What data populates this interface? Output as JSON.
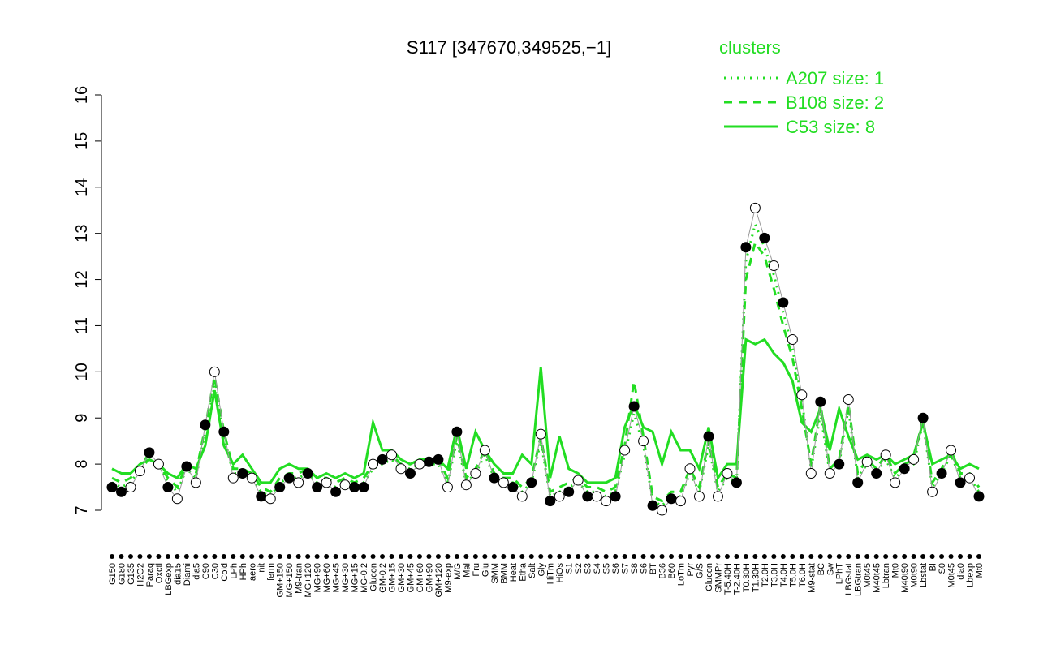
{
  "chart_data": {
    "type": "line",
    "title": "S117 [347670,349525,−1]",
    "ylim": [
      7,
      16
    ],
    "yticks": [
      7,
      8,
      9,
      10,
      11,
      12,
      13,
      14,
      15,
      16
    ],
    "legend_title": "clusters",
    "legend_position": "top-right",
    "point_color": "#000000",
    "categories": [
      "G150",
      "G180",
      "G135",
      "H2O2",
      "Paraq",
      "Oxctl",
      "LBGexp",
      "dia15",
      "Diami",
      "dia5",
      "C90",
      "C30",
      "Cold",
      "LPh",
      "HPh",
      "aero",
      "nit",
      "ferm",
      "GM+150",
      "MG+150",
      "M9-tran",
      "MG+120",
      "MG+90",
      "MG+60",
      "MG+45",
      "MG+30",
      "MG+15",
      "MG-0.2",
      "Glucon",
      "GM-0.2",
      "GM+15",
      "GM+30",
      "GM+45",
      "GM+60",
      "GM+90",
      "GM+120",
      "M9-exp",
      "M/G",
      "Mal",
      "Fru",
      "Glu",
      "SMM",
      "BMM",
      "Heat",
      "Etha",
      "Salt",
      "Gly",
      "HiTm",
      "HiOs",
      "S1",
      "S2",
      "S3",
      "S4",
      "S5",
      "S6",
      "S7",
      "S8",
      "S6",
      "BT",
      "B36",
      "B60",
      "LoTm",
      "Pyr",
      "G/S",
      "Glucon",
      "SMMPr",
      "T-5.40H",
      "T-2.40H",
      "T0.30H",
      "T1.30H",
      "T2.0H",
      "T3.0H",
      "T4.0H",
      "T5.0H",
      "T6.0H",
      "M9-stat",
      "BC",
      "Sw",
      "LPhT",
      "LBGstat",
      "LBGtran",
      "M0t45",
      "M40t45",
      "Lbtran",
      "Mt0",
      "M40t90",
      "M0t90",
      "Lbstat",
      "BI",
      "S0",
      "M0t45",
      "dia0",
      "Lbexp",
      "Mt0"
    ],
    "values": [
      7.5,
      7.4,
      7.5,
      7.85,
      8.25,
      8.0,
      7.5,
      7.25,
      7.95,
      7.6,
      8.85,
      10.0,
      8.7,
      7.7,
      7.8,
      7.7,
      7.3,
      7.25,
      7.5,
      7.7,
      7.6,
      7.8,
      7.5,
      7.6,
      7.4,
      7.55,
      7.5,
      7.5,
      8.0,
      8.1,
      8.2,
      7.9,
      7.8,
      8.0,
      8.05,
      8.1,
      7.5,
      8.7,
      7.55,
      7.8,
      8.3,
      7.7,
      7.6,
      7.5,
      7.3,
      7.6,
      8.65,
      7.2,
      7.3,
      7.4,
      7.65,
      7.3,
      7.3,
      7.2,
      7.3,
      8.3,
      9.25,
      8.5,
      7.1,
      7.0,
      7.25,
      7.2,
      7.9,
      7.3,
      8.6,
      7.3,
      7.8,
      7.6,
      12.7,
      13.55,
      12.9,
      12.3,
      11.5,
      10.7,
      9.5,
      7.8,
      9.35,
      7.8,
      8.0,
      9.4,
      7.6,
      8.05,
      7.8,
      8.2,
      7.6,
      7.9,
      8.1,
      9.0,
      7.4,
      7.8,
      8.3,
      7.6,
      7.7,
      7.3
    ],
    "filled": [
      true,
      true,
      false,
      false,
      true,
      false,
      true,
      false,
      true,
      false,
      true,
      false,
      true,
      false,
      true,
      false,
      true,
      false,
      true,
      true,
      false,
      true,
      true,
      false,
      true,
      false,
      true,
      true,
      false,
      true,
      false,
      false,
      true,
      false,
      true,
      true,
      false,
      true,
      false,
      false,
      false,
      true,
      false,
      true,
      false,
      true,
      false,
      true,
      false,
      true,
      false,
      true,
      false,
      false,
      true,
      false,
      true,
      false,
      true,
      false,
      true,
      false,
      false,
      false,
      true,
      false,
      false,
      true,
      true,
      false,
      true,
      false,
      true,
      false,
      false,
      false,
      true,
      false,
      true,
      false,
      true,
      false,
      true,
      false,
      false,
      true,
      false,
      true,
      false,
      true,
      false,
      true,
      false,
      true
    ],
    "series": [
      {
        "name": "A207 size: 1",
        "color": "#22dd22",
        "dash": "dotted",
        "values": [
          7.6,
          7.5,
          7.6,
          7.9,
          8.1,
          8.0,
          7.6,
          7.4,
          7.9,
          7.7,
          8.7,
          9.7,
          8.6,
          7.8,
          7.8,
          7.7,
          7.4,
          7.3,
          7.6,
          7.7,
          7.7,
          7.8,
          7.6,
          7.6,
          7.5,
          7.6,
          7.5,
          7.6,
          7.9,
          8.0,
          8.1,
          7.9,
          7.9,
          8.0,
          8.0,
          8.0,
          7.6,
          8.5,
          7.6,
          7.8,
          8.2,
          7.7,
          7.6,
          7.6,
          7.4,
          7.6,
          8.5,
          7.3,
          7.4,
          7.5,
          7.6,
          7.4,
          7.4,
          7.3,
          7.4,
          8.2,
          9.1,
          8.4,
          7.2,
          7.1,
          7.3,
          7.3,
          7.8,
          7.4,
          8.4,
          7.4,
          7.7,
          7.6,
          12.4,
          13.2,
          12.7,
          12.1,
          11.3,
          10.5,
          9.4,
          7.9,
          9.1,
          7.8,
          8.0,
          9.2,
          7.7,
          8.0,
          7.8,
          8.1,
          7.7,
          7.9,
          8.0,
          8.9,
          7.5,
          7.8,
          8.2,
          7.7,
          7.7,
          7.4
        ]
      },
      {
        "name": "B108 size: 2",
        "color": "#22dd22",
        "dash": "dashed",
        "values": [
          7.7,
          7.6,
          7.7,
          8.0,
          8.2,
          8.0,
          7.7,
          7.5,
          8.0,
          7.8,
          8.8,
          9.9,
          8.7,
          7.9,
          7.9,
          7.8,
          7.5,
          7.4,
          7.7,
          7.8,
          7.8,
          7.9,
          7.7,
          7.7,
          7.6,
          7.7,
          7.6,
          7.7,
          8.0,
          8.1,
          8.2,
          8.0,
          8.0,
          8.1,
          8.1,
          8.1,
          7.7,
          8.6,
          7.7,
          7.9,
          8.3,
          7.8,
          7.7,
          7.7,
          7.5,
          7.7,
          8.6,
          7.4,
          7.5,
          7.6,
          7.7,
          7.5,
          7.5,
          7.4,
          7.5,
          8.4,
          9.8,
          8.6,
          7.3,
          7.2,
          7.4,
          7.4,
          7.9,
          7.5,
          8.5,
          7.5,
          7.8,
          7.7,
          12.0,
          12.8,
          12.5,
          11.8,
          11.0,
          10.3,
          9.2,
          8.0,
          9.3,
          7.9,
          8.1,
          9.3,
          7.8,
          8.1,
          7.9,
          8.2,
          7.8,
          8.0,
          8.1,
          9.0,
          7.6,
          7.9,
          8.3,
          7.8,
          7.8,
          7.5
        ]
      },
      {
        "name": "C53 size: 8",
        "color": "#22dd22",
        "dash": "solid",
        "values": [
          7.9,
          7.8,
          7.8,
          8.0,
          8.1,
          8.0,
          7.8,
          7.7,
          8.0,
          7.9,
          8.4,
          9.6,
          8.4,
          8.0,
          8.2,
          7.9,
          7.6,
          7.6,
          7.9,
          8.0,
          7.9,
          7.9,
          7.7,
          7.8,
          7.7,
          7.8,
          7.7,
          7.8,
          8.9,
          8.3,
          8.3,
          8.1,
          8.0,
          8.1,
          8.1,
          8.1,
          7.9,
          8.8,
          7.9,
          8.7,
          8.3,
          8.0,
          7.8,
          7.8,
          8.2,
          8.0,
          10.1,
          7.7,
          8.6,
          7.9,
          7.8,
          7.6,
          7.6,
          7.6,
          7.7,
          8.8,
          9.3,
          8.8,
          8.7,
          8.0,
          8.7,
          8.3,
          8.3,
          7.9,
          8.8,
          7.7,
          8.0,
          8.0,
          10.7,
          10.6,
          10.7,
          10.4,
          10.2,
          9.8,
          8.9,
          8.7,
          9.2,
          8.3,
          9.2,
          8.6,
          8.1,
          8.2,
          8.1,
          8.2,
          8.0,
          8.1,
          8.2,
          8.9,
          8.0,
          8.1,
          8.2,
          7.9,
          8.0,
          7.9
        ]
      }
    ]
  }
}
